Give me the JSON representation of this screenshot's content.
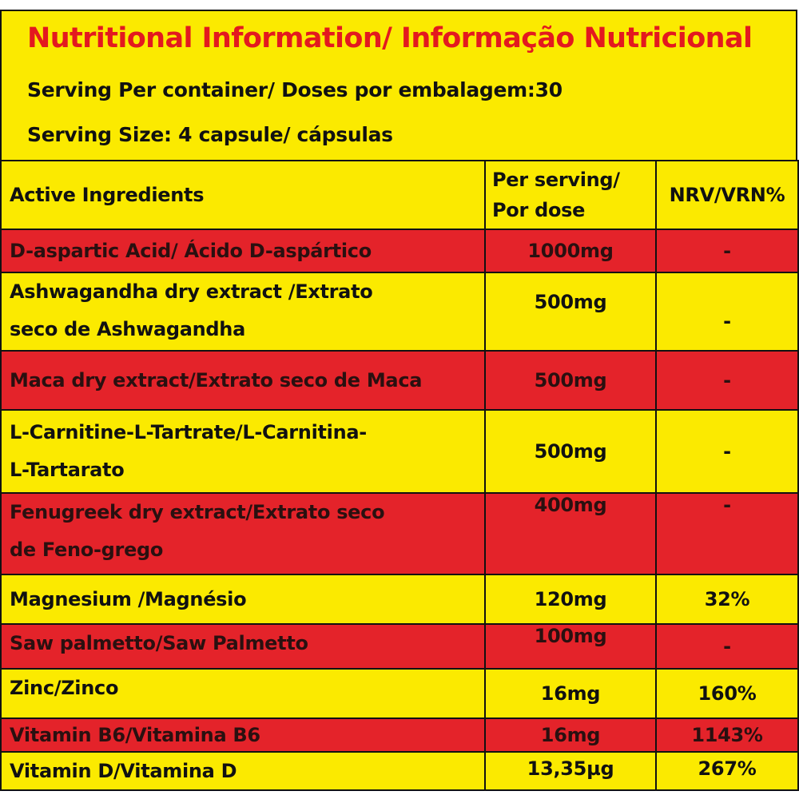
{
  "header": {
    "title": "Nutritional Information/ Informação Nutricional",
    "servings_per_container": "Serving Per container/ Doses por embalagem:30",
    "serving_size": "Serving Size: 4 capsule/ cápsulas"
  },
  "columns": {
    "ingredient": "Active Ingredients",
    "per_serving_line1": "Per serving/",
    "per_serving_line2": "Por dose",
    "nrv": "NRV/VRN%"
  },
  "rows": [
    {
      "line1": "D-aspartic Acid/ Ácido D-aspártico",
      "line2": "",
      "amount": "1000mg",
      "nrv": "-"
    },
    {
      "line1": "Ashwagandha dry extract /Extrato",
      "line2": "seco de Ashwagandha",
      "amount": "500mg",
      "nrv": "-"
    },
    {
      "line1": "Maca dry extract/Extrato seco de Maca",
      "line2": "",
      "amount": "500mg",
      "nrv": "-"
    },
    {
      "line1": "L-Carnitine-L-Tartrate/L-Carnitina-",
      "line2": "L-Tartarato",
      "amount": "500mg",
      "nrv": "-"
    },
    {
      "line1": "Fenugreek dry extract/Extrato seco",
      "line2": "de Feno-grego",
      "amount": "400mg",
      "nrv": "-"
    },
    {
      "line1": "Magnesium /Magnésio",
      "line2": "",
      "amount": "120mg",
      "nrv": "32%"
    },
    {
      "line1": "Saw palmetto/Saw Palmetto",
      "line2": "",
      "amount": "100mg",
      "nrv": "-"
    },
    {
      "line1": "Zinc/Zinco",
      "line2": "",
      "amount": "16mg",
      "nrv": "160%"
    },
    {
      "line1": "Vitamin B6/Vitamina B6",
      "line2": "",
      "amount": "16mg",
      "nrv": "1143%"
    },
    {
      "line1": "Vitamin D/Vitamina D",
      "line2": "",
      "amount": "13,35µg",
      "nrv": "267%"
    }
  ],
  "colors": {
    "yellow": "#fbea00",
    "red": "#e4232a",
    "title_red": "#e3191f"
  }
}
